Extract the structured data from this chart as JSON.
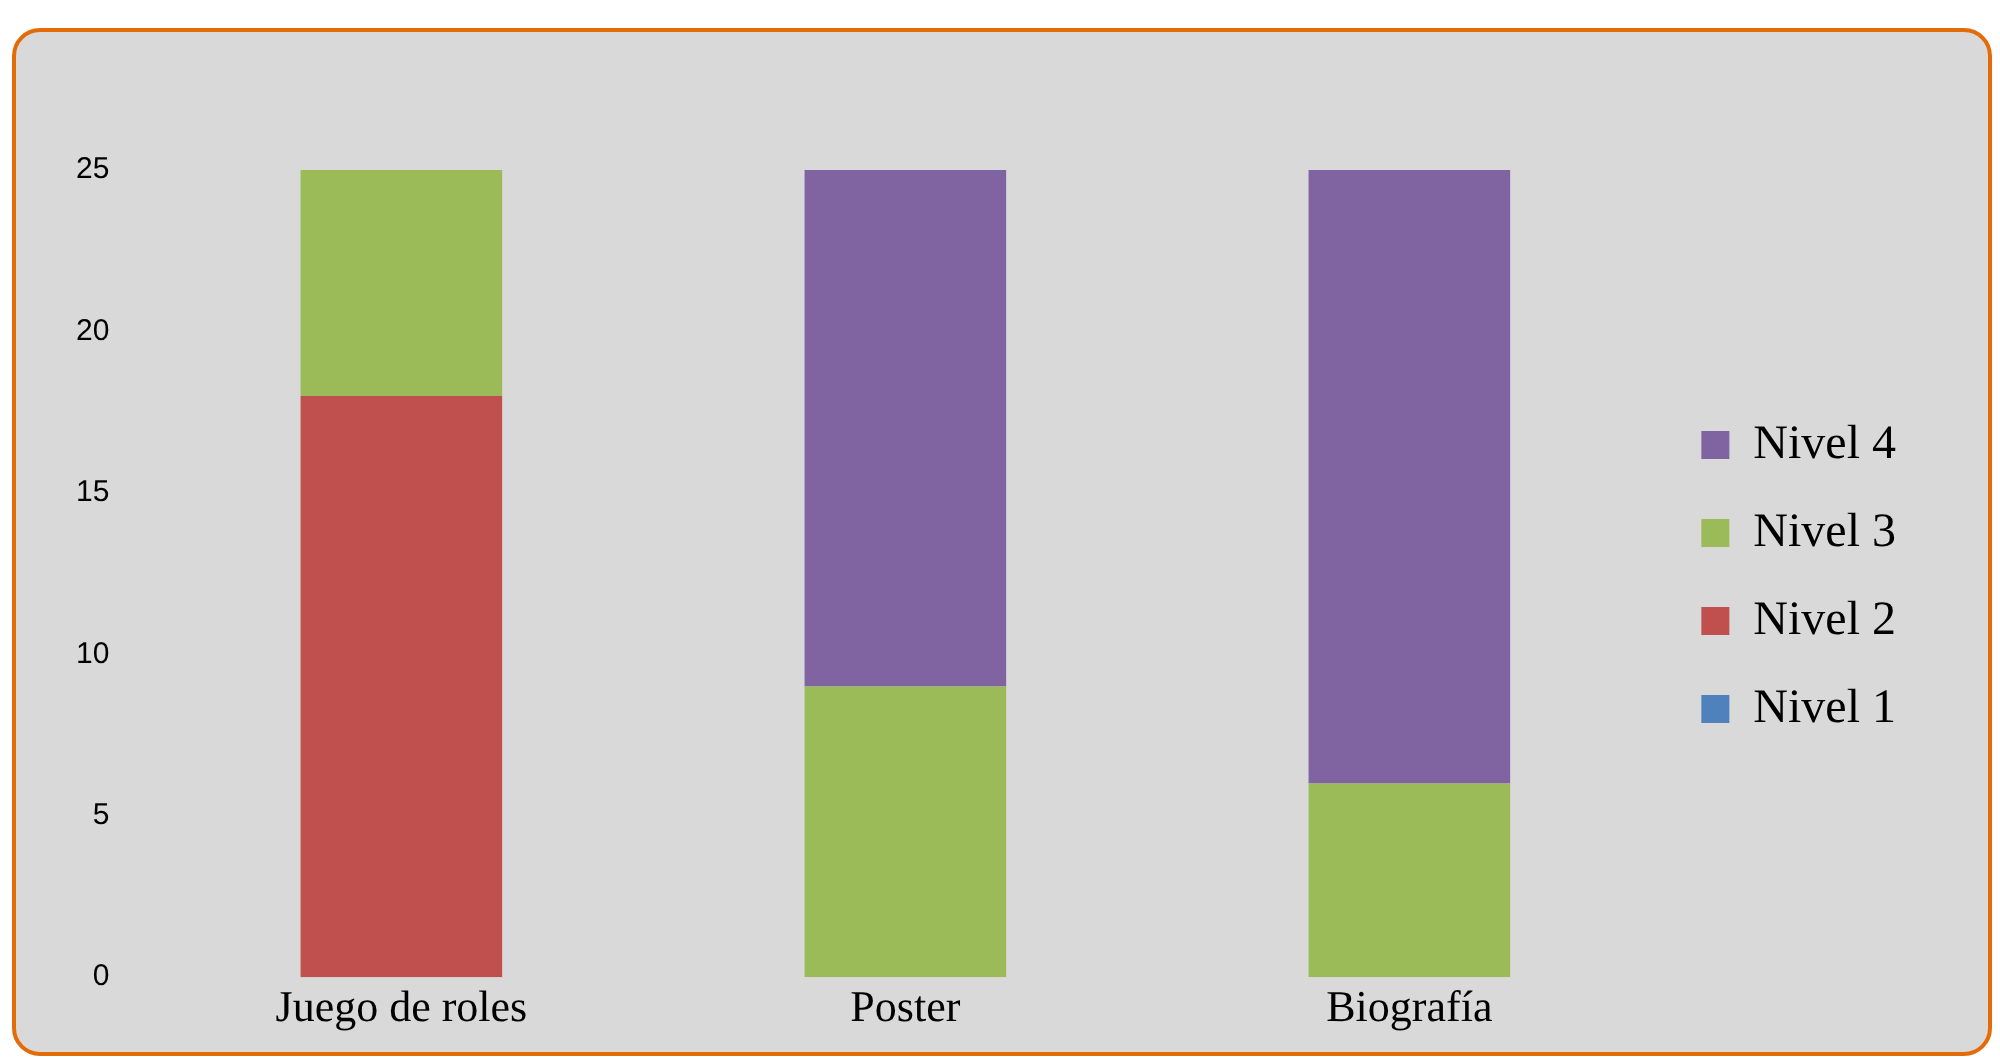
{
  "chart_data": {
    "type": "bar",
    "stacked": true,
    "categories": [
      "Juego de roles",
      "Poster",
      "Biografía"
    ],
    "series": [
      {
        "name": "Nivel 1",
        "color": "#4f81bd",
        "values": [
          0,
          0,
          0
        ]
      },
      {
        "name": "Nivel 2",
        "color": "#c0504d",
        "values": [
          18,
          0,
          0
        ]
      },
      {
        "name": "Nivel 3",
        "color": "#9bbb59",
        "values": [
          7,
          9,
          6
        ]
      },
      {
        "name": "Nivel 4",
        "color": "#8064a2",
        "values": [
          0,
          16,
          19
        ]
      }
    ],
    "ylim": [
      0,
      25
    ],
    "yticks": [
      0,
      5,
      10,
      15,
      20,
      25
    ],
    "grid": false,
    "legend": "right"
  }
}
